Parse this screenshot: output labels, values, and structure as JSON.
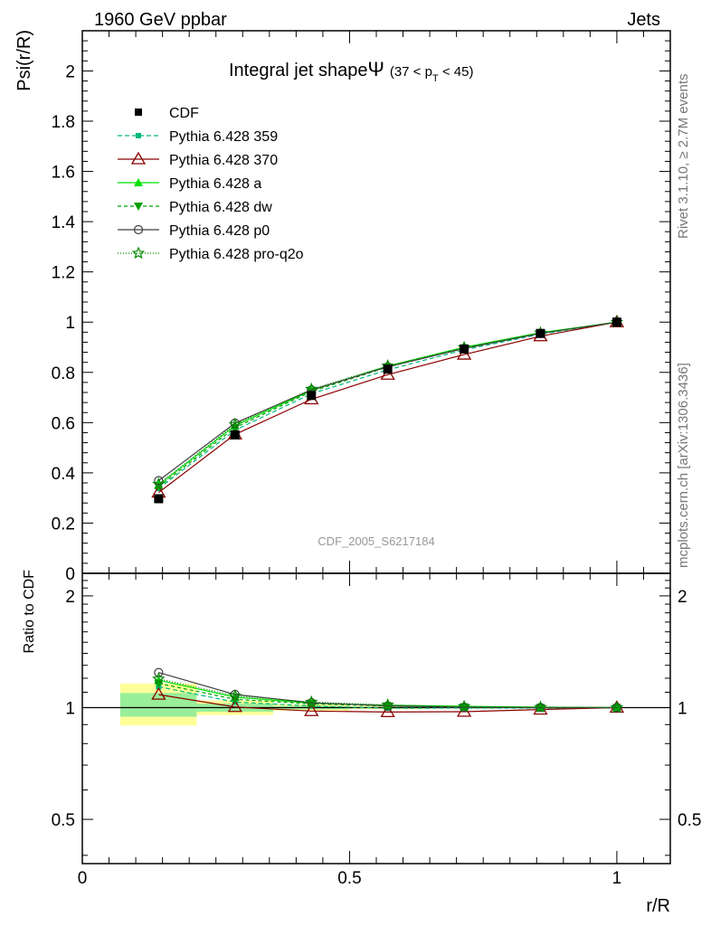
{
  "header": {
    "left": "1960 GeV ppbar",
    "right": "Jets"
  },
  "side_text": {
    "rivet": "Rivet 3.1.10, ≥ 2.7M events",
    "mcplots": "mcplots.cern.ch [arXiv:1306.3436]"
  },
  "watermark": "CDF_2005_S6217184",
  "title": {
    "main": "Integral jet shape",
    "psi": "Ψ",
    "range_open": "(37 < p",
    "range_sub": "T",
    "range_close": " < 45)"
  },
  "axes": {
    "ylabel_top": "Psi(r/R)",
    "ylabel_bottom": "Ratio to CDF",
    "xlabel": "r/R"
  },
  "chart_data": {
    "type": "line",
    "x": [
      0.1428,
      0.2857,
      0.4286,
      0.5714,
      0.7143,
      0.8571,
      1.0
    ],
    "xlim": [
      0,
      1.1
    ],
    "top_ylim": [
      0,
      2.16
    ],
    "top_yticks": [
      0,
      0.2,
      0.4,
      0.6,
      0.8,
      1,
      1.2,
      1.4,
      1.6,
      1.8,
      2
    ],
    "top_yticklabels": [
      "0",
      "0.2",
      "0.4",
      "0.6",
      "0.8",
      "1",
      "1.2",
      "1.4",
      "1.6",
      "1.8",
      "2"
    ],
    "ratio_ylim": [
      0.38,
      2.3
    ],
    "ratio_log": true,
    "ratio_yticks": [
      0.5,
      1,
      2
    ],
    "ratio_yticklabels": [
      "0.5",
      "1",
      "2"
    ],
    "xticks": [
      0,
      0.5,
      1
    ],
    "xticklabels": [
      "0",
      "0.5",
      "1"
    ],
    "legend_position": "top-left",
    "grid": false,
    "data": {
      "name": "CDF",
      "y": [
        0.297,
        0.551,
        0.708,
        0.813,
        0.893,
        0.955,
        1.0
      ],
      "band_x_edges": [
        [
          0.071,
          0.214
        ],
        [
          0.214,
          0.357
        ],
        [
          0.357,
          0.5
        ],
        [
          0.5,
          0.643
        ],
        [
          0.643,
          0.786
        ],
        [
          0.786,
          0.929
        ],
        [
          0.929,
          1.071
        ]
      ],
      "ratio_inner": [
        [
          0.945,
          1.095
        ],
        [
          0.975,
          1.025
        ],
        [
          0.99,
          1.01
        ],
        [
          0.995,
          1.005
        ],
        [
          0.997,
          1.003
        ],
        [
          0.998,
          1.002
        ],
        [
          1.0,
          1.0
        ]
      ],
      "ratio_outer": [
        [
          0.895,
          1.16
        ],
        [
          0.955,
          1.045
        ],
        [
          0.98,
          1.02
        ],
        [
          0.99,
          1.01
        ],
        [
          0.995,
          1.005
        ],
        [
          0.997,
          1.003
        ],
        [
          1.0,
          1.0
        ]
      ]
    },
    "series": [
      {
        "name": "Pythia 6.428 359",
        "color": "#00b878",
        "marker": "square-small",
        "dash": "5,3",
        "y": [
          0.338,
          0.57,
          0.715,
          0.81,
          0.89,
          0.952,
          1.0
        ],
        "ratio": [
          1.138,
          1.035,
          1.01,
          0.996,
          0.997,
          0.997,
          1.0
        ]
      },
      {
        "name": "Pythia 6.428 370",
        "color": "#8b0000",
        "marker": "triangle-open",
        "dash": "",
        "y": [
          0.322,
          0.553,
          0.693,
          0.791,
          0.871,
          0.944,
          1.0
        ],
        "ratio": [
          1.084,
          1.004,
          0.979,
          0.973,
          0.975,
          0.988,
          1.0
        ]
      },
      {
        "name": "Pythia 6.428 a",
        "color": "#00e000",
        "marker": "triangle-filled",
        "dash": "",
        "y": [
          0.352,
          0.588,
          0.728,
          0.825,
          0.9,
          0.958,
          1.0
        ],
        "ratio": [
          1.185,
          1.067,
          1.028,
          1.015,
          1.008,
          1.003,
          1.0
        ]
      },
      {
        "name": "Pythia 6.428 dw",
        "color": "#00a000",
        "marker": "triangle-down",
        "dash": "4,3",
        "y": [
          0.345,
          0.58,
          0.724,
          0.821,
          0.897,
          0.956,
          1.0
        ],
        "ratio": [
          1.162,
          1.053,
          1.023,
          1.01,
          1.004,
          1.001,
          1.0
        ]
      },
      {
        "name": "Pythia 6.428 p0",
        "color": "#404040",
        "marker": "circle-open",
        "dash": "",
        "y": [
          0.369,
          0.598,
          0.73,
          0.822,
          0.895,
          0.955,
          1.0
        ],
        "ratio": [
          1.243,
          1.085,
          1.031,
          1.011,
          1.002,
          1.0,
          1.0
        ]
      },
      {
        "name": "Pythia 6.428 pro-q2o",
        "color": "#008800",
        "marker": "star-open",
        "dash": "1,2",
        "y": [
          0.355,
          0.593,
          0.733,
          0.826,
          0.899,
          0.957,
          1.0
        ],
        "ratio": [
          1.195,
          1.076,
          1.035,
          1.016,
          1.007,
          1.002,
          1.0
        ]
      }
    ]
  }
}
